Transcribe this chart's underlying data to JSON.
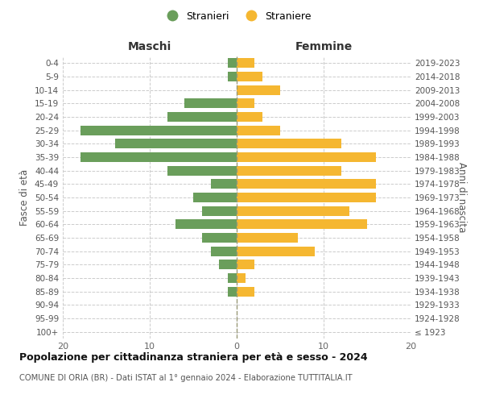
{
  "age_groups": [
    "100+",
    "95-99",
    "90-94",
    "85-89",
    "80-84",
    "75-79",
    "70-74",
    "65-69",
    "60-64",
    "55-59",
    "50-54",
    "45-49",
    "40-44",
    "35-39",
    "30-34",
    "25-29",
    "20-24",
    "15-19",
    "10-14",
    "5-9",
    "0-4"
  ],
  "birth_years": [
    "≤ 1923",
    "1924-1928",
    "1929-1933",
    "1934-1938",
    "1939-1943",
    "1944-1948",
    "1949-1953",
    "1954-1958",
    "1959-1963",
    "1964-1968",
    "1969-1973",
    "1974-1978",
    "1979-1983",
    "1984-1988",
    "1989-1993",
    "1994-1998",
    "1999-2003",
    "2004-2008",
    "2009-2013",
    "2014-2018",
    "2019-2023"
  ],
  "maschi": [
    0,
    0,
    0,
    1,
    1,
    2,
    3,
    4,
    7,
    4,
    5,
    3,
    8,
    18,
    14,
    18,
    8,
    6,
    0,
    1,
    1
  ],
  "femmine": [
    0,
    0,
    0,
    2,
    1,
    2,
    9,
    7,
    15,
    13,
    16,
    16,
    12,
    16,
    12,
    5,
    3,
    2,
    5,
    3,
    2
  ],
  "color_maschi": "#6a9e5b",
  "color_femmine": "#f5b731",
  "title": "Popolazione per cittadinanza straniera per età e sesso - 2024",
  "subtitle": "COMUNE DI ORIA (BR) - Dati ISTAT al 1° gennaio 2024 - Elaborazione TUTTITALIA.IT",
  "label_maschi": "Stranieri",
  "label_femmine": "Straniere",
  "header_left": "Maschi",
  "header_right": "Femmine",
  "ylabel_left": "Fasce di età",
  "ylabel_right": "Anni di nascita",
  "xlim": 20,
  "bg_color": "#ffffff",
  "grid_color": "#cccccc",
  "center_line_color": "#999977"
}
